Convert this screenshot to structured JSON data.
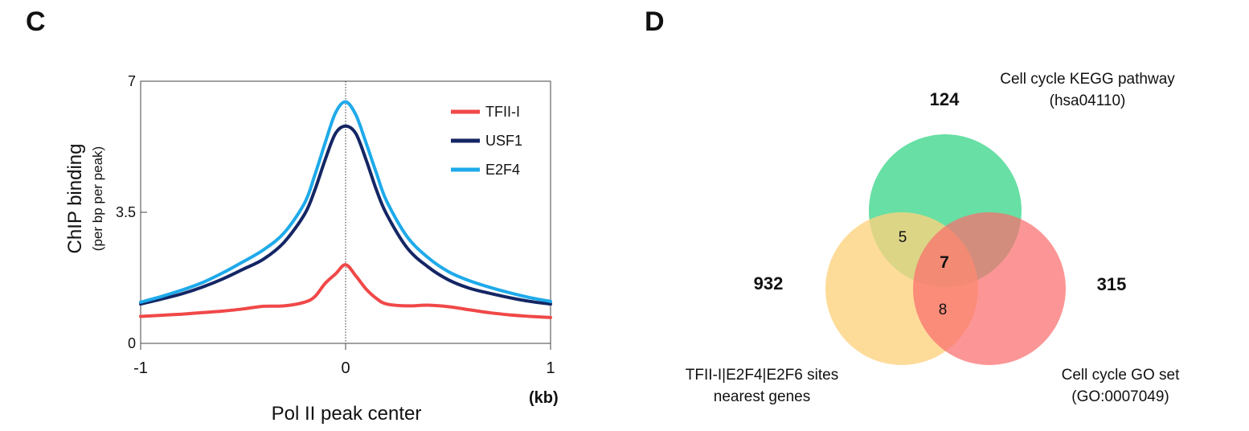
{
  "panels": {
    "left_letter": "C",
    "right_letter": "D"
  },
  "chart_data": [
    {
      "type": "line",
      "xlabel": "Pol II peak center",
      "x_unit": "(kb)",
      "ylabel": "ChIP binding",
      "ylabel_sub": "(per bp per peak)",
      "xlim": [
        -1,
        1
      ],
      "ylim": [
        0,
        7
      ],
      "x_ticks": [
        -1,
        0,
        1
      ],
      "x_tick_labels": [
        "-1",
        "0",
        "1"
      ],
      "y_ticks": [
        0,
        3.5,
        7
      ],
      "y_tick_labels": [
        "0",
        "3.5",
        "7"
      ],
      "center_line": true,
      "legend_position": "top-right",
      "x": [
        -1.0,
        -0.9,
        -0.8,
        -0.7,
        -0.6,
        -0.5,
        -0.4,
        -0.3,
        -0.2,
        -0.15,
        -0.1,
        -0.05,
        0.0,
        0.05,
        0.1,
        0.15,
        0.2,
        0.3,
        0.4,
        0.5,
        0.6,
        0.7,
        0.8,
        0.9,
        1.0
      ],
      "series": [
        {
          "name": "TFII-I",
          "color": "#f04848",
          "values": [
            0.72,
            0.75,
            0.78,
            0.82,
            0.86,
            0.92,
            0.99,
            1.0,
            1.1,
            1.25,
            1.6,
            1.85,
            2.1,
            1.8,
            1.45,
            1.2,
            1.05,
            1.0,
            1.02,
            0.98,
            0.9,
            0.82,
            0.76,
            0.72,
            0.69
          ]
        },
        {
          "name": "USF1",
          "color": "#142664",
          "values": [
            1.05,
            1.18,
            1.32,
            1.5,
            1.72,
            1.98,
            2.25,
            2.7,
            3.45,
            4.1,
            4.9,
            5.6,
            5.8,
            5.6,
            4.9,
            4.1,
            3.45,
            2.55,
            2.05,
            1.7,
            1.48,
            1.34,
            1.22,
            1.12,
            1.05
          ]
        },
        {
          "name": "E2F4",
          "color": "#1eaaea",
          "values": [
            1.1,
            1.25,
            1.42,
            1.62,
            1.88,
            2.18,
            2.5,
            2.95,
            3.75,
            4.5,
            5.35,
            6.15,
            6.45,
            6.1,
            5.35,
            4.55,
            3.8,
            2.85,
            2.3,
            1.92,
            1.68,
            1.5,
            1.35,
            1.22,
            1.12
          ]
        }
      ]
    },
    {
      "type": "venn",
      "sets": [
        {
          "name": "Cell cycle KEGG pathway",
          "id_text": "(hsa04110)",
          "only_count": "124",
          "color": "#3dd68a"
        },
        {
          "name": "TFII-I|E2F4|E2F6 sites",
          "name_line2": "nearest genes",
          "only_count": "932",
          "color": "#fcd27e"
        },
        {
          "name": "Cell cycle GO set",
          "id_text": "(GO:0007049)",
          "only_count": "315",
          "color": "#fb6e6e"
        }
      ],
      "overlaps": {
        "kegg_and_sites": "5",
        "all_three": "7",
        "sites_and_go": "8"
      }
    }
  ]
}
